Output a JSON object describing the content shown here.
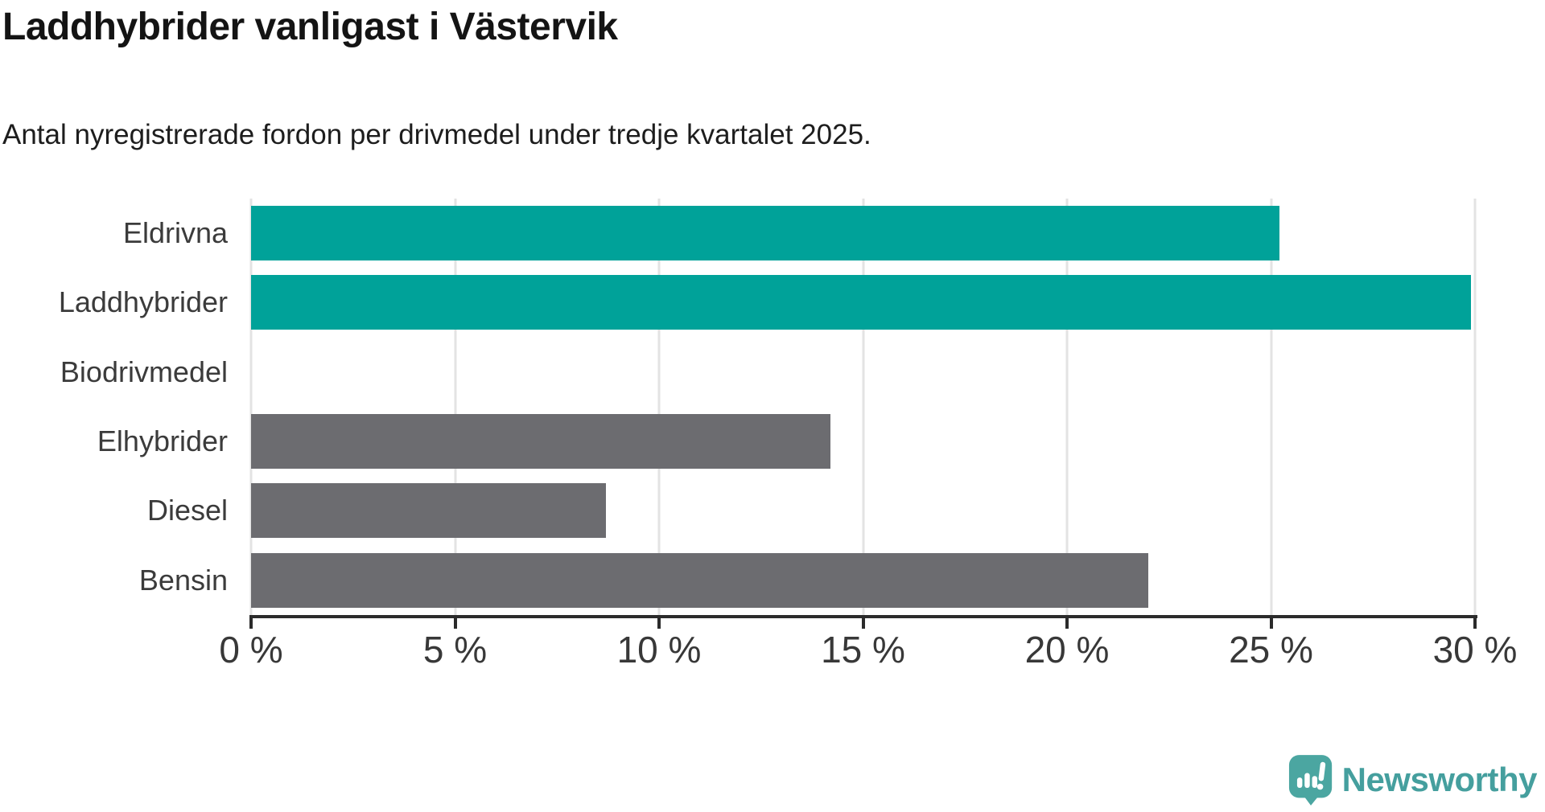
{
  "title": "Laddhybrider vanligast i Västervik",
  "subtitle": "Antal nyregistrerade fordon per drivmedel under tredje kvartalet 2025.",
  "chart_data": {
    "type": "bar",
    "orientation": "horizontal",
    "title": "Laddhybrider vanligast i Västervik",
    "subtitle": "Antal nyregistrerade fordon per drivmedel under tredje kvartalet 2025.",
    "categories": [
      "Eldrivna",
      "Laddhybrider",
      "Biodrivmedel",
      "Elhybrider",
      "Diesel",
      "Bensin"
    ],
    "values": [
      25.2,
      29.9,
      0,
      14.2,
      8.7,
      22.0
    ],
    "unit": "%",
    "bar_colors": [
      "#00a299",
      "#00a299",
      "#6c6c70",
      "#6c6c70",
      "#6c6c70",
      "#6c6c70"
    ],
    "highlight_color": "#00a299",
    "default_color": "#6c6c70",
    "xlim": [
      0,
      30
    ],
    "x_tick_values": [
      0,
      5,
      10,
      15,
      20,
      25,
      30
    ],
    "x_tick_labels": [
      "0 %",
      "5 %",
      "10 %",
      "15 %",
      "20 %",
      "25 %",
      "30 %"
    ],
    "xlabel": "",
    "ylabel": "",
    "grid": "vertical-only",
    "gridline_color": "#e3e3e3",
    "axis_color": "#2b2b2b",
    "legend": "none"
  },
  "footer": {
    "brand": "Newsworthy",
    "brand_text_color": "#459f9e",
    "logo_color": "#4ba6a1",
    "logo_icon": "speech-bubble-bar-chart-exclamation"
  }
}
